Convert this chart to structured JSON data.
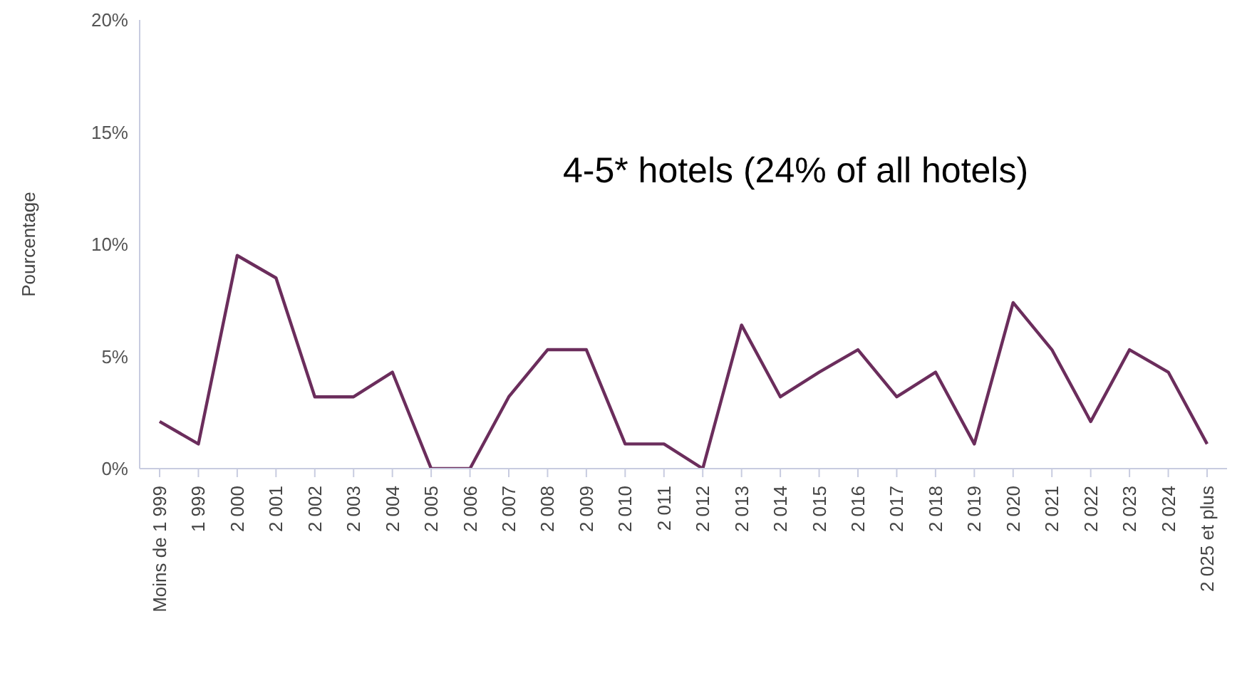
{
  "chart_data": {
    "type": "line",
    "ylabel": "Pourcentage",
    "annotations": [
      "4-5* hotels (24% of all hotels)"
    ],
    "categories": [
      "Moins de 1 999",
      "1 999",
      "2 000",
      "2 001",
      "2 002",
      "2 003",
      "2 004",
      "2 005",
      "2 006",
      "2 007",
      "2 008",
      "2 009",
      "2 010",
      "2 011",
      "2 012",
      "2 013",
      "2 014",
      "2 015",
      "2 016",
      "2 017",
      "2 018",
      "2 019",
      "2 020",
      "2 021",
      "2 022",
      "2 023",
      "2 024",
      "2 025 et plus"
    ],
    "series": [
      {
        "color": "#6b2d5c",
        "values": [
          2.1,
          1.1,
          9.5,
          8.5,
          3.2,
          3.2,
          4.3,
          0,
          0,
          3.2,
          5.3,
          5.3,
          1.1,
          1.1,
          0,
          6.4,
          3.2,
          4.3,
          5.3,
          3.2,
          4.3,
          1.1,
          7.4,
          5.3,
          2.1,
          5.3,
          4.3,
          1.1
        ]
      }
    ],
    "ylim": [
      0,
      20
    ],
    "yticks": [
      {
        "value": 0,
        "label": "0%"
      },
      {
        "value": 5,
        "label": "5%"
      },
      {
        "value": 10,
        "label": "10%"
      },
      {
        "value": 15,
        "label": "15%"
      },
      {
        "value": 20,
        "label": "20%"
      }
    ],
    "grid": false,
    "legend": false,
    "marker": "none",
    "line_style": "solid"
  }
}
